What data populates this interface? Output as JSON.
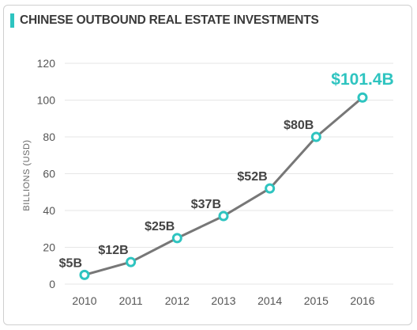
{
  "chart_data": {
    "type": "line",
    "title": "CHINESE OUTBOUND REAL ESTATE INVESTMENTS",
    "ylabel": "BILLIONS (USD)",
    "xlabel": "",
    "categories": [
      "2010",
      "2011",
      "2012",
      "2013",
      "2014",
      "2015",
      "2016"
    ],
    "series": [
      {
        "values": [
          5,
          12,
          25,
          37,
          52,
          80,
          101.4
        ],
        "labels": [
          "$5B",
          "$12B",
          "$25B",
          "$37B",
          "$52B",
          "$80B",
          "$101.4B"
        ]
      }
    ],
    "ylim": [
      0,
      120
    ],
    "yticks": [
      0,
      20,
      40,
      60,
      80,
      100,
      120
    ],
    "grid": true,
    "legend": "none",
    "colors": {
      "line": "#777777",
      "marker": "#2ec4c0",
      "highlight_label": "#2ec4c0",
      "title_accent": "#2ec4c0",
      "grid": "#e6e6e6"
    }
  }
}
